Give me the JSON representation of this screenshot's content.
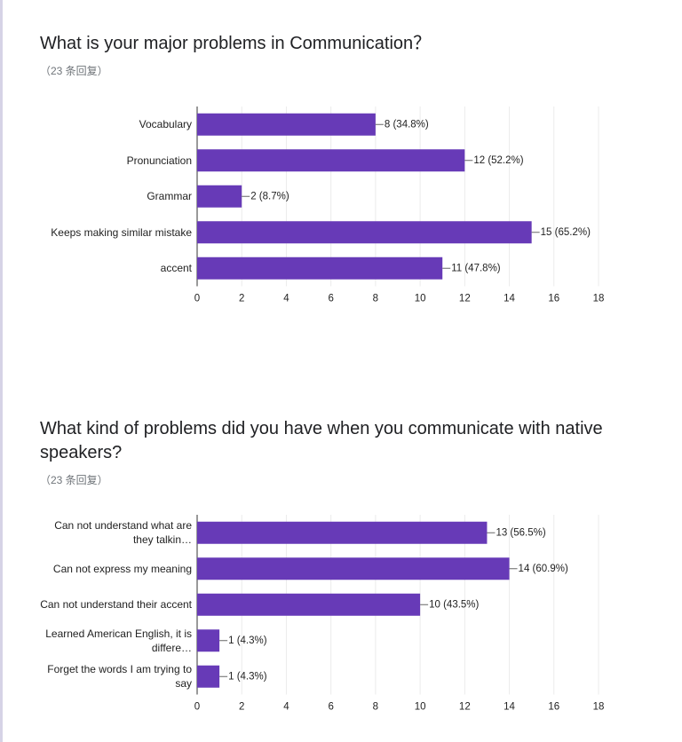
{
  "chart_data": [
    {
      "type": "bar",
      "orientation": "horizontal",
      "title": "What is your major problems in Communication？",
      "subtitle": "（23 条回复）",
      "categories": [
        "Vocabulary",
        "Pronunciation",
        "Grammar",
        "Keeps making similar mistake",
        "accent"
      ],
      "values": [
        8,
        12,
        2,
        15,
        11
      ],
      "value_labels": [
        "8 (34.8%)",
        "12 (52.2%)",
        "2 (8.7%)",
        "15 (65.2%)",
        "11 (47.8%)"
      ],
      "color": "#673ab7",
      "xlim": [
        0,
        18
      ],
      "xticks": [
        0,
        2,
        4,
        6,
        8,
        10,
        12,
        14,
        16,
        18
      ],
      "grid": true
    },
    {
      "type": "bar",
      "orientation": "horizontal",
      "title": "What kind of problems did you have when you communicate with native speakers?",
      "subtitle": "（23 条回复）",
      "categories": [
        "Can not understand what are they talkin…",
        "Can not express my meaning",
        "Can not understand their accent",
        "Learned American English, it is differe…",
        "Forget the words I am trying to say"
      ],
      "values": [
        13,
        14,
        10,
        1,
        1
      ],
      "value_labels": [
        "13 (56.5%)",
        "14 (60.9%)",
        "10 (43.5%)",
        "1 (4.3%)",
        "1 (4.3%)"
      ],
      "color": "#673ab7",
      "xlim": [
        0,
        18
      ],
      "xticks": [
        0,
        2,
        4,
        6,
        8,
        10,
        12,
        14,
        16,
        18
      ],
      "grid": true
    }
  ]
}
